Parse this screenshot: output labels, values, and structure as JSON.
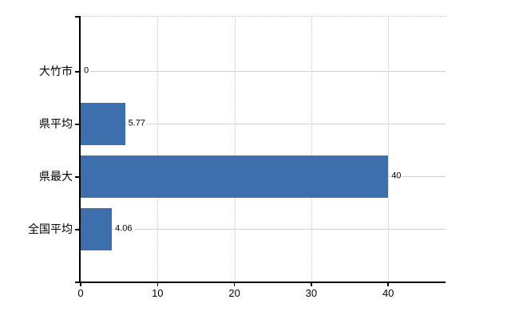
{
  "page": {
    "background_color": "#ffffff"
  },
  "chart_data": {
    "type": "bar",
    "orientation": "horizontal",
    "title": "",
    "categories": [
      "大竹市",
      "県平均",
      "県最大",
      "全国平均"
    ],
    "values": [
      0,
      5.77,
      40,
      4.06
    ],
    "value_labels": [
      "0",
      "5.77",
      "40",
      "4.06"
    ],
    "x_ticks": [
      0,
      10,
      20,
      30,
      40
    ],
    "x_tick_labels": [
      "0",
      "10",
      "20",
      "30",
      "40"
    ],
    "xlim": [
      0,
      47.7
    ],
    "grid": true,
    "legend": false,
    "colors": {
      "bar": "#3e6fad",
      "h_gridline": "#ccd7cc",
      "v_gridline": "#d6d6d6",
      "top_border": "#d3d3d3",
      "axis": "#000000",
      "text": "#000000",
      "background": "#ffffff"
    }
  }
}
